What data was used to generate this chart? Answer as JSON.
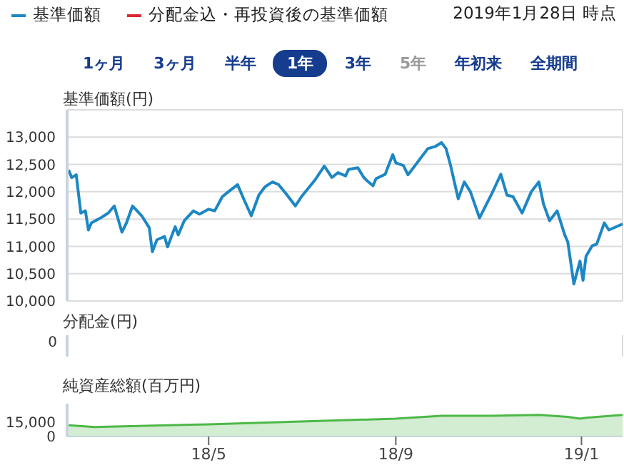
{
  "chart_data": [
    {
      "type": "line",
      "ylabel": "基準価額(円)",
      "legend": "top left",
      "grid": true,
      "tick_labels": "y",
      "annotations": [
        "2019年1月28日 時点",
        "1ヶ月",
        "3ヶ月",
        "半年",
        "1年",
        "3年",
        "5年",
        "年初来",
        "全期間"
      ],
      "xlim": [
        "2018-01-28",
        "2019-01-28"
      ],
      "xticks": [
        {
          "value": "2018-05-01",
          "label": null
        },
        {
          "value": "2018-09-01",
          "label": null
        },
        {
          "value": "2019-01-01",
          "label": null
        }
      ],
      "ylim": [
        10000,
        13500
      ],
      "yticks": [
        {
          "value": 10000,
          "label": "10,000"
        },
        {
          "value": 10500,
          "label": "10,500"
        },
        {
          "value": 11000,
          "label": "11,000"
        },
        {
          "value": 11500,
          "label": "11,500"
        },
        {
          "value": 12000,
          "label": "12,000"
        },
        {
          "value": 12500,
          "label": "12,500"
        },
        {
          "value": 13000,
          "label": "13,000"
        }
      ],
      "x": [
        "2018-01-29",
        "2018-01-31",
        "2018-02-03",
        "2018-02-06",
        "2018-02-09",
        "2018-02-11",
        "2018-02-13",
        "2018-02-19",
        "2018-02-24",
        "2018-02-28",
        "2018-03-05",
        "2018-03-08",
        "2018-03-12",
        "2018-03-18",
        "2018-03-23",
        "2018-03-25",
        "2018-03-28",
        "2018-04-02",
        "2018-04-04",
        "2018-04-09",
        "2018-04-11",
        "2018-04-15",
        "2018-04-21",
        "2018-04-25",
        "2018-05-01",
        "2018-05-05",
        "2018-05-10",
        "2018-05-14",
        "2018-05-20",
        "2018-05-24",
        "2018-05-29",
        "2018-06-03",
        "2018-06-07",
        "2018-06-12",
        "2018-06-16",
        "2018-06-21",
        "2018-06-27",
        "2018-07-01",
        "2018-07-10",
        "2018-07-16",
        "2018-07-21",
        "2018-07-25",
        "2018-07-30",
        "2018-08-01",
        "2018-08-07",
        "2018-08-11",
        "2018-08-14",
        "2018-08-17",
        "2018-08-19",
        "2018-08-25",
        "2018-08-30",
        "2018-09-01",
        "2018-09-06",
        "2018-09-09",
        "2018-09-15",
        "2018-09-22",
        "2018-09-27",
        "2018-10-01",
        "2018-10-04",
        "2018-10-07",
        "2018-10-12",
        "2018-10-16",
        "2018-10-20",
        "2018-10-26",
        "2018-11-03",
        "2018-11-09",
        "2018-11-13",
        "2018-11-17",
        "2018-11-23",
        "2018-11-29",
        "2018-12-04",
        "2018-12-07",
        "2018-12-11",
        "2018-12-16",
        "2018-12-21",
        "2018-12-23",
        "2018-12-27",
        "2018-12-31",
        "2019-01-02",
        "2019-01-04",
        "2019-01-08",
        "2019-01-11",
        "2019-01-16",
        "2019-01-19",
        "2019-01-28"
      ],
      "series": [
        {
          "name": "基準価額",
          "color": "#1c87c4",
          "values": [
            12400,
            12260,
            12310,
            11610,
            11650,
            11300,
            11430,
            11520,
            11610,
            11740,
            11260,
            11430,
            11740,
            11560,
            11340,
            10900,
            11120,
            11180,
            10990,
            11360,
            11210,
            11470,
            11650,
            11590,
            11680,
            11650,
            11910,
            12000,
            12130,
            11870,
            11560,
            11940,
            12090,
            12180,
            12130,
            11960,
            11740,
            11910,
            12220,
            12470,
            12260,
            12350,
            12290,
            12410,
            12440,
            12260,
            12180,
            12110,
            12240,
            12320,
            12680,
            12530,
            12480,
            12310,
            12530,
            12790,
            12830,
            12900,
            12790,
            12480,
            11870,
            12180,
            12000,
            11520,
            11960,
            12320,
            11940,
            11910,
            11610,
            12000,
            12180,
            11780,
            11470,
            11650,
            11210,
            11080,
            10310,
            10730,
            10380,
            10820,
            11010,
            11040,
            11430,
            11300,
            11410
          ]
        },
        {
          "name": "分配金込・再投資後の基準価額",
          "color": "#d7282f",
          "values": [
            null,
            null,
            null,
            null,
            null,
            null,
            null,
            null,
            null,
            null,
            null,
            null,
            null,
            null,
            null,
            null,
            null,
            null,
            null,
            null,
            null,
            null,
            null,
            null,
            null,
            null,
            null,
            null,
            null,
            null,
            null,
            null,
            null,
            null,
            null,
            null,
            null,
            null,
            null,
            null,
            null,
            null,
            null,
            null,
            null,
            null,
            null,
            null,
            null,
            null,
            null,
            null,
            null,
            null,
            null,
            null,
            null,
            null,
            null,
            null,
            null,
            null,
            null,
            null,
            null,
            null,
            null,
            null,
            null,
            null,
            null,
            null,
            null,
            null,
            null,
            null,
            null,
            null,
            null,
            null,
            null,
            null,
            null,
            null,
            null
          ]
        }
      ]
    },
    {
      "type": "other",
      "ylabel": "分配金(円)",
      "annotations": [
        "0"
      ]
    },
    {
      "type": "area",
      "ylabel": "純資産総額(百万円)",
      "color": "#4cb847",
      "xlim": [
        "2018-01-28",
        "2019-01-28"
      ],
      "xticks": [
        {
          "value": "2018-05-01",
          "label": "18/5"
        },
        {
          "value": "2018-09-01",
          "label": "18/9"
        },
        {
          "value": "2019-01-01",
          "label": "19/1"
        }
      ],
      "ylim": [
        0,
        35000
      ],
      "yticks": [
        0,
        {
          "value": 15000,
          "label": "15,000"
        }
      ],
      "x": [
        "2018-01-29",
        "2018-02-15",
        "2018-05-01",
        "2018-09-01",
        "2018-10-01",
        "2018-11-03",
        "2018-12-04",
        "2018-12-23",
        "2018-12-31",
        "2019-01-04",
        "2019-01-28"
      ],
      "values": [
        12000,
        10000,
        13000,
        19000,
        22000,
        22000,
        23000,
        21000,
        19000,
        20000,
        23000
      ]
    }
  ]
}
